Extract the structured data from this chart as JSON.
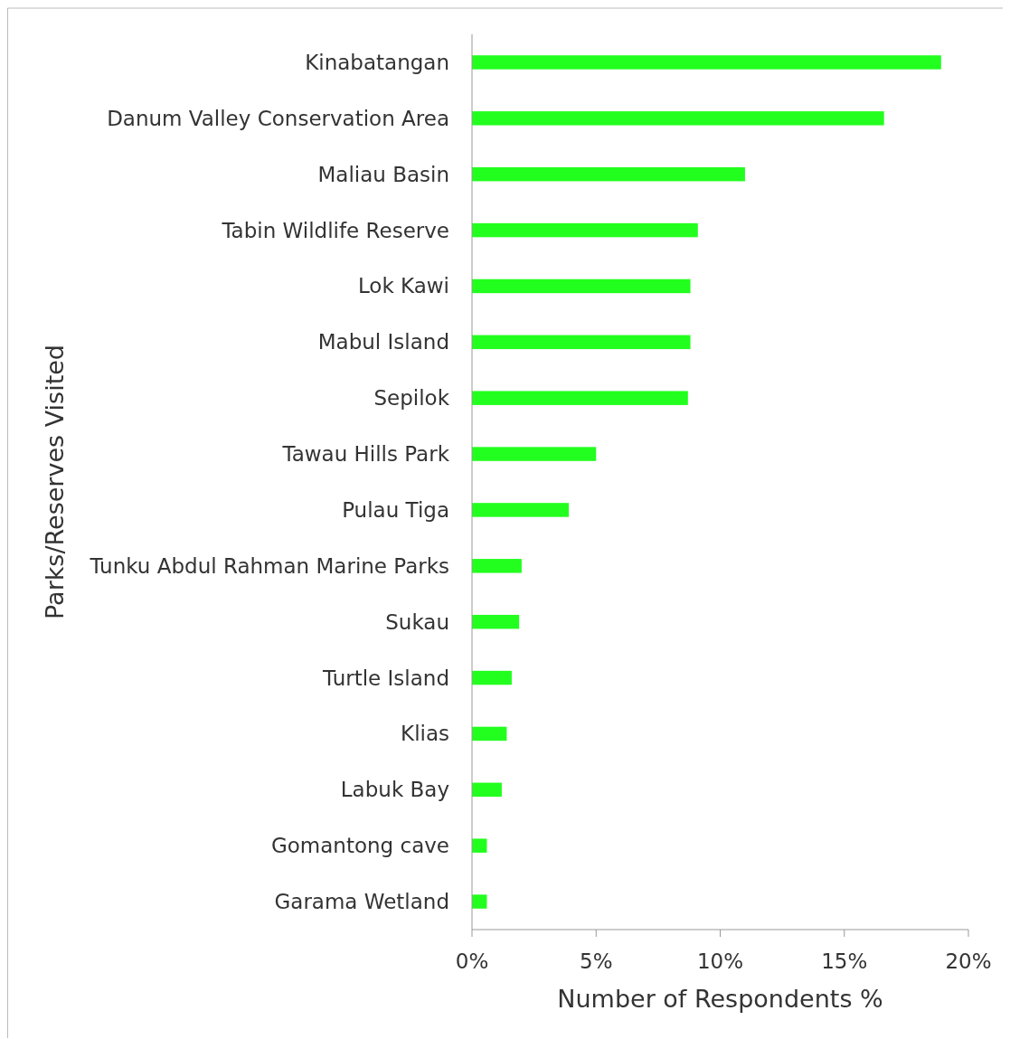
{
  "chart_data": {
    "type": "bar",
    "orientation": "horizontal",
    "xlabel": "Number of Respondents %",
    "ylabel": "Parks/Reserves Visited",
    "categories": [
      "Kinabatangan",
      "Danum Valley Conservation Area",
      "Maliau Basin",
      "Tabin Wildlife Reserve",
      "Lok Kawi",
      "Mabul Island",
      "Sepilok",
      "Tawau Hills Park",
      "Pulau Tiga",
      "Tunku Abdul Rahman Marine Parks",
      "Sukau",
      "Turtle Island",
      "Klias",
      "Labuk Bay",
      "Gomantong cave",
      "Garama Wetland"
    ],
    "values": [
      18.9,
      16.6,
      11.0,
      9.1,
      8.8,
      8.8,
      8.7,
      5.0,
      3.9,
      2.0,
      1.9,
      1.6,
      1.4,
      1.2,
      0.6,
      0.6
    ],
    "color": "#22ff1e",
    "xlim": [
      0,
      20
    ],
    "xticks": [
      {
        "value": 0,
        "label": "0%"
      },
      {
        "value": 5,
        "label": "5%"
      },
      {
        "value": 10,
        "label": "10%"
      },
      {
        "value": 15,
        "label": "15%"
      },
      {
        "value": 20,
        "label": "20%"
      }
    ],
    "grid": false
  }
}
